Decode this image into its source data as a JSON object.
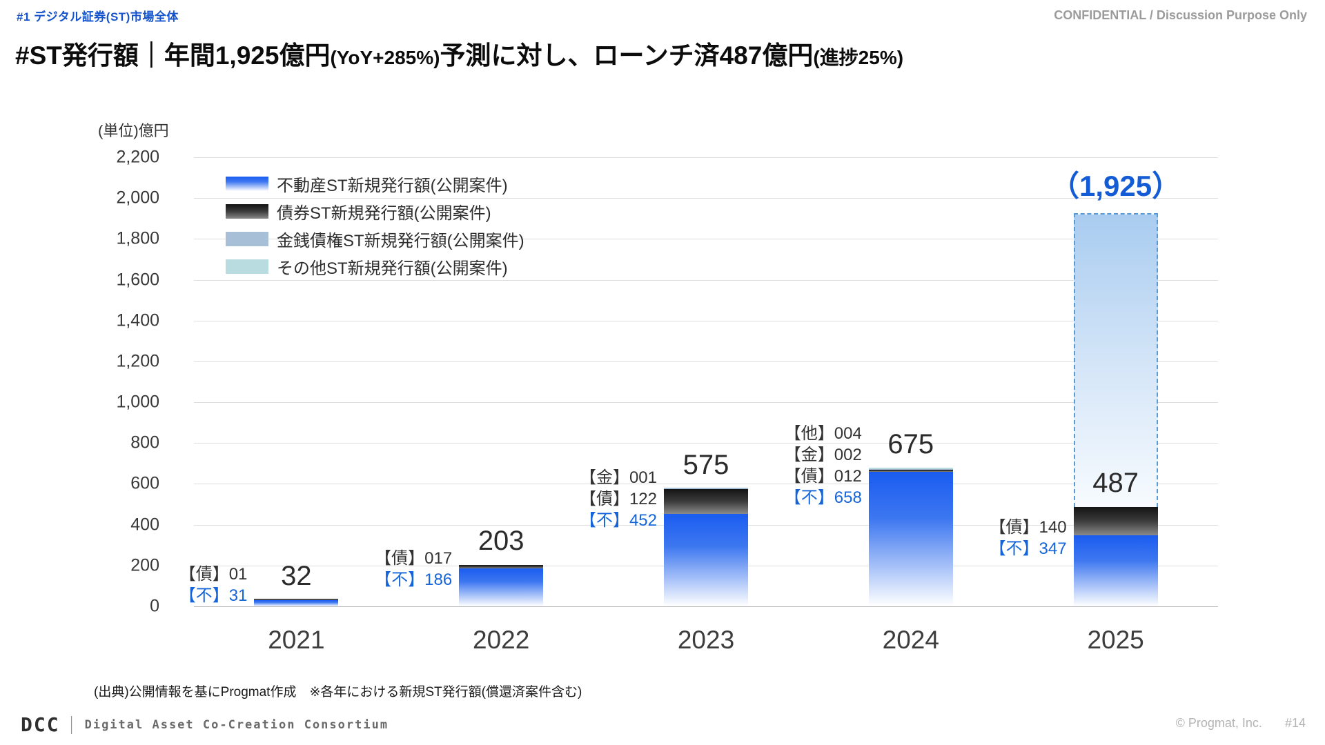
{
  "page": {
    "tag": "#1 デジタル証券(ST)市場全体",
    "confidential": "CONFIDENTIAL / Discussion Purpose Only",
    "title": [
      {
        "text": "#ST発行額｜年間1,925億円",
        "size": "lg"
      },
      {
        "text": "(YoY+285%)",
        "size": "sm"
      },
      {
        "text": "予測に対し、ローンチ済487億円",
        "size": "lg"
      },
      {
        "text": "(進捗25%)",
        "size": "sm"
      }
    ],
    "source_note": "(出典)公開情報を基にProgmat作成　※各年における新規ST発行額(償還済案件含む)",
    "logo_dcc": "DCC",
    "logo_separator": "｜",
    "logo_text": "Digital Asset Co-Creation Consortium",
    "copyright": "© Progmat, Inc.",
    "page_number": "#14"
  },
  "chart_data": {
    "type": "bar",
    "stacked": true,
    "unit_label": "(単位)億円",
    "categories": [
      "2021",
      "2022",
      "2023",
      "2024",
      "2025"
    ],
    "series": [
      {
        "name": "不動産ST新規発行額(公開案件)",
        "values": [
          31,
          186,
          452,
          658,
          347
        ],
        "color": "#1a5cf0"
      },
      {
        "name": "債券ST新規発行額(公開案件)",
        "values": [
          1,
          17,
          122,
          12,
          140
        ],
        "color": "#141414"
      },
      {
        "name": "金銭債権ST新規発行額(公開案件)",
        "values": [
          0,
          0,
          1,
          2,
          0
        ],
        "color": "#a7bfd7"
      },
      {
        "name": "その他ST新規発行額(公開案件)",
        "values": [
          0,
          0,
          0,
          4,
          0
        ],
        "color": "#b8dce0"
      }
    ],
    "totals": [
      "32",
      "203",
      "575",
      "675",
      "487"
    ],
    "annotations": [
      [
        {
          "text": "【債】01",
          "color": "#333333"
        },
        {
          "text": "【不】31",
          "color": "#1565d8"
        }
      ],
      [
        {
          "text": "【債】017",
          "color": "#333333"
        },
        {
          "text": "【不】186",
          "color": "#1565d8"
        }
      ],
      [
        {
          "text": "【金】001",
          "color": "#333333"
        },
        {
          "text": "【債】122",
          "color": "#333333"
        },
        {
          "text": "【不】452",
          "color": "#1565d8"
        }
      ],
      [
        {
          "text": "【他】004",
          "color": "#333333"
        },
        {
          "text": "【金】002",
          "color": "#333333"
        },
        {
          "text": "【債】012",
          "color": "#333333"
        },
        {
          "text": "【不】658",
          "color": "#1565d8"
        }
      ],
      [
        {
          "text": "【債】140",
          "color": "#333333"
        },
        {
          "text": "【不】347",
          "color": "#1565d8"
        }
      ]
    ],
    "forecast": {
      "category_index": 4,
      "from_value": 487,
      "value": 1925,
      "label": "（1,925）",
      "border_color": "#5b9bd5",
      "label_color": "#135cd6"
    },
    "ylim": [
      0,
      2200
    ],
    "ytick_step": 200,
    "yticks": [
      "0",
      "200",
      "400",
      "600",
      "800",
      "1,000",
      "1,200",
      "1,400",
      "1,600",
      "1,800",
      "2,000",
      "2,200"
    ],
    "grid": true,
    "legend_position": "top-left"
  },
  "colors": {
    "accent_blue": "#1565d8",
    "tag_blue": "#1553cc",
    "bar_blue": "#1a5cf0",
    "bar_dark": "#141414",
    "bar_steel": "#a7bfd7",
    "bar_teal": "#b8dce0",
    "forecast_fill_top": "#a9ccf0",
    "gridline": "#dedede"
  }
}
